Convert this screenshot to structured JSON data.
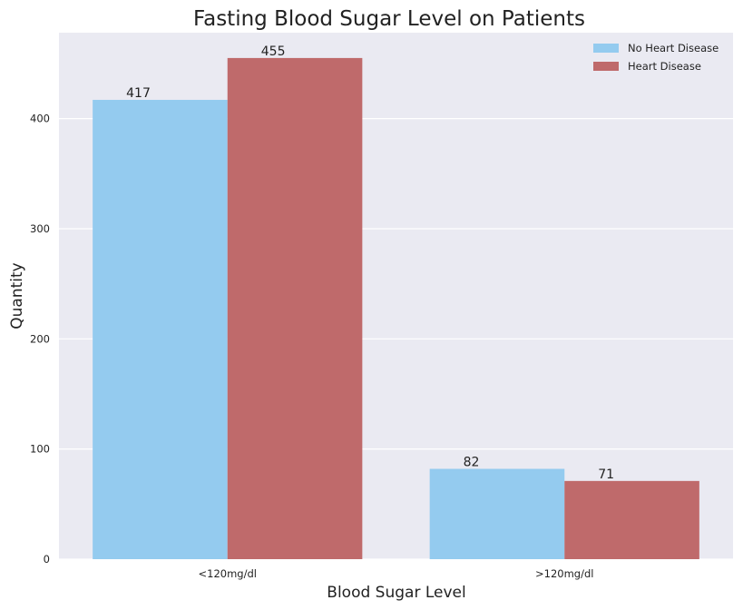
{
  "chart_data": {
    "type": "bar",
    "title": "Fasting Blood Sugar Level on Patients",
    "xlabel": "Blood Sugar Level",
    "ylabel": "Quantity",
    "categories": [
      "<120mg/dl",
      ">120mg/dl"
    ],
    "series": [
      {
        "name": "No Heart Disease",
        "values": [
          417,
          82
        ],
        "color": "#94CBEF"
      },
      {
        "name": "Heart Disease",
        "values": [
          455,
          71
        ],
        "color": "#BF6A6B"
      }
    ],
    "ylim": [
      0,
      478
    ],
    "yticks": [
      0,
      100,
      200,
      300,
      400
    ],
    "grid": true,
    "legend": "top-right",
    "background": "#EAEAF2"
  }
}
